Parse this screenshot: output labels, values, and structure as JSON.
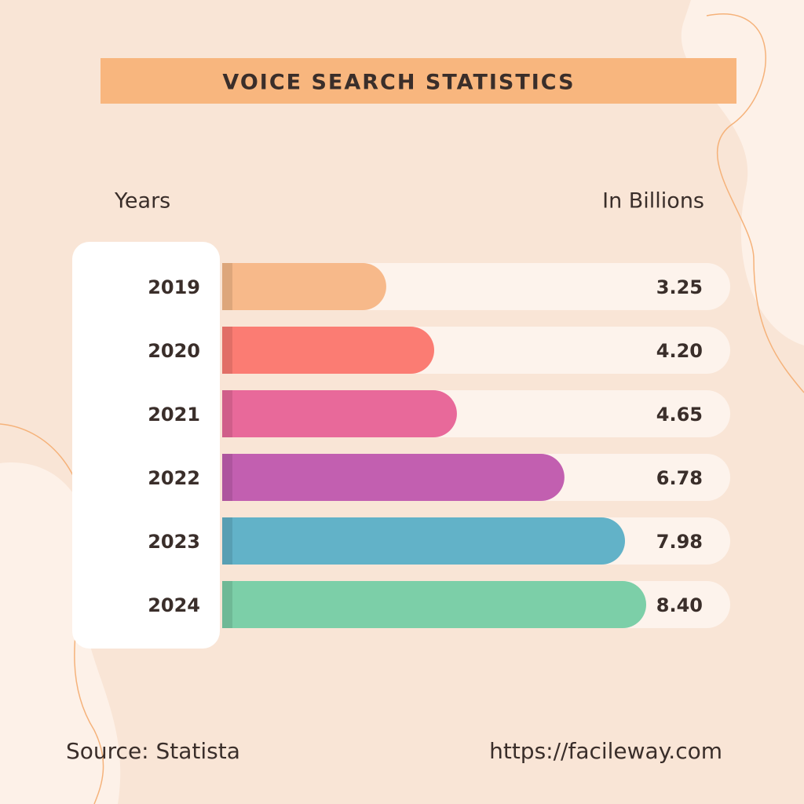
{
  "chart_data": {
    "type": "bar",
    "orientation": "horizontal",
    "title": "VOICE SEARCH STATISTICS",
    "category_header": "Years",
    "value_header": "In Billions",
    "categories": [
      "2019",
      "2020",
      "2021",
      "2022",
      "2023",
      "2024"
    ],
    "values": [
      3.25,
      4.2,
      4.65,
      6.78,
      7.98,
      8.4
    ],
    "value_labels": [
      "3.25",
      "4.20",
      "4.65",
      "6.78",
      "7.98",
      "8.40"
    ],
    "colors": [
      "#f7b98a",
      "#fb7c73",
      "#e8699a",
      "#c25fb0",
      "#62b2c8",
      "#7ccfa8"
    ],
    "source": "Source: Statista",
    "url": "https://facileway.com"
  }
}
